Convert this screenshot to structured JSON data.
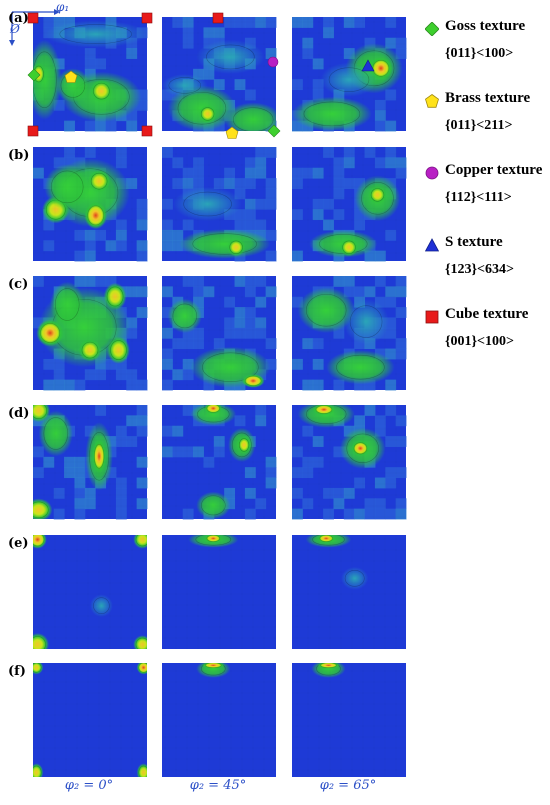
{
  "figure": {
    "row_labels": [
      "(a)",
      "(b)",
      "(c)",
      "(d)",
      "(e)",
      "(f)"
    ],
    "column_labels": [
      "φ₂ = 0°",
      "φ₂ = 45°",
      "φ₂ = 65°"
    ],
    "axis_phi1": "φ₁",
    "axis_phi": "Ø",
    "colors": {
      "low": "#1e3ad6",
      "mid_low": "#2e7fd0",
      "mid": "#2ec43a",
      "mid_high": "#c8e61a",
      "high": "#f2c52a",
      "peak": "#e0421c",
      "axis": "#2b4fc7"
    }
  },
  "legend": [
    {
      "name": "Goss texture",
      "miller": "{011}<100>",
      "marker": "diamond",
      "color": "#3ecf2e"
    },
    {
      "name": "Brass texture",
      "miller": "{011}<211>",
      "marker": "pentagon",
      "color": "#ffe21a"
    },
    {
      "name": "Copper texture",
      "miller": "{112}<111>",
      "marker": "circle",
      "color": "#b81fc4"
    },
    {
      "name": "S texture",
      "miller": "{123}<634>",
      "marker": "triangle",
      "color": "#1e2fd6"
    },
    {
      "name": "Cube texture",
      "miller": "{001}<100>",
      "marker": "square",
      "color": "#e81a1a"
    }
  ]
}
